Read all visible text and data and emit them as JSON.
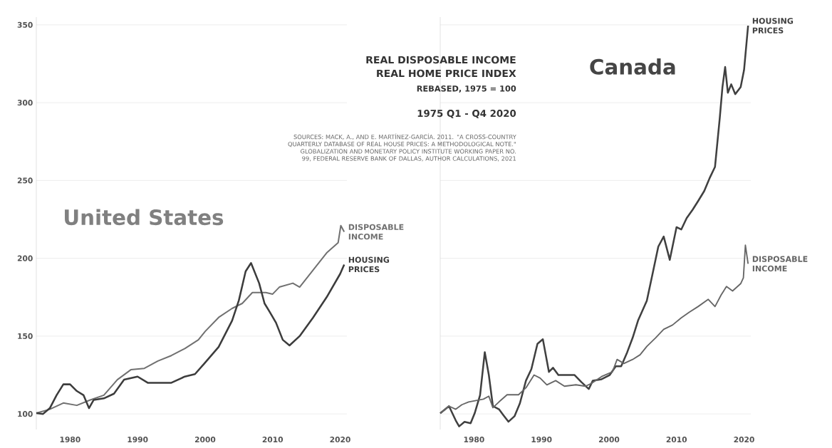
{
  "chart_data": [
    {
      "type": "line",
      "title": "United States",
      "xlim": [
        1975,
        2021
      ],
      "ylim": [
        90,
        355
      ],
      "xticks": [
        1980,
        1990,
        2000,
        2010,
        2020
      ],
      "yticks": [
        100,
        150,
        200,
        250,
        300,
        350
      ],
      "grid": "y",
      "annotations": [
        "REAL DISPOSABLE INCOME",
        "REAL HOME PRICE INDEX",
        "REBASED, 1975 = 100",
        "1975 Q1 - Q4 2020",
        "SOURCES: MACK, A., AND E. MARTÍNEZ-GARCÍA. 2011. \"A CROSS-COUNTRY QUARTERLY DATABASE OF REAL HOUSE PRICES: A METHODOLOGICAL NOTE.\" GLOBALIZATION AND MONETARY POLICY INSTITUTE WORKING PAPER NO. 99, FEDERAL RESERVE BANK OF DALLAS, AUTHOR CALCULATIONS, 2021"
      ],
      "series": [
        {
          "name": "DISPOSABLE INCOME",
          "color": "#707070",
          "x": [
            1975,
            1977,
            1979,
            1981,
            1983,
            1985,
            1987,
            1989,
            1991,
            1993,
            1995,
            1997,
            1999,
            2000,
            2002,
            2004,
            2005.5,
            2007,
            2009,
            2010,
            2011,
            2013,
            2014,
            2016,
            2018,
            2019.7,
            2020.1,
            2020.6
          ],
          "values": [
            100.5,
            103,
            107,
            105.5,
            109,
            112,
            122,
            128.4,
            129.3,
            134,
            137.5,
            142,
            147.6,
            153,
            162,
            167.8,
            171,
            178,
            178,
            177,
            181.5,
            184,
            181.5,
            192.5,
            203.5,
            210,
            221,
            217
          ]
        },
        {
          "name": "HOUSING PRICES",
          "color": "#3c3c3c",
          "x": [
            1975,
            1976,
            1977,
            1978,
            1979,
            1980,
            1981,
            1982,
            1982.8,
            1983.5,
            1985,
            1986.5,
            1988,
            1990,
            1991.5,
            1995,
            1997,
            1998.5,
            2000,
            2002,
            2004,
            2005,
            2006,
            2006.8,
            2008,
            2008.8,
            2009.5,
            2010.5,
            2011.5,
            2012.5,
            2014,
            2016,
            2018,
            2020,
            2020.6
          ],
          "values": [
            100.5,
            100,
            103.7,
            112,
            119,
            119,
            114.7,
            112,
            103.7,
            109,
            110,
            113,
            122,
            124,
            120,
            120,
            124,
            125.6,
            133,
            143,
            160,
            173,
            191.6,
            197,
            184,
            171,
            166,
            158.6,
            147.6,
            144,
            150,
            162,
            175,
            190,
            196
          ]
        }
      ]
    },
    {
      "type": "line",
      "title": "Canada",
      "xlim": [
        1975,
        2021
      ],
      "ylim": [
        90,
        355
      ],
      "xticks": [
        1980,
        1990,
        2000,
        2010,
        2020
      ],
      "yticks": [
        100,
        150,
        200,
        250,
        300,
        350
      ],
      "grid": "y",
      "tick_labels": "x",
      "series": [
        {
          "name": "HOUSING PRICES",
          "color": "#404040",
          "x": [
            1975,
            1976.3,
            1977.3,
            1977.8,
            1978.6,
            1979.5,
            1980.1,
            1980.9,
            1981.6,
            1982.2,
            1982.8,
            1983.7,
            1984.3,
            1985.1,
            1986,
            1986.8,
            1987.7,
            1988.5,
            1989.4,
            1990.2,
            1991.1,
            1991.7,
            1992.5,
            1993.8,
            1994.9,
            1995.9,
            1997,
            1997.6,
            1998.9,
            2000.1,
            2001,
            2001.8,
            2002.7,
            2003.5,
            2004.3,
            2005.6,
            2006.5,
            2007.3,
            2008.1,
            2009,
            2010,
            2010.7,
            2011.5,
            2012.4,
            2013.2,
            2014.1,
            2014.9,
            2015.7,
            2016.4,
            2016.8,
            2017.2,
            2017.6,
            2018.1,
            2018.7,
            2019.5,
            2020,
            2020.6
          ],
          "values": [
            100.4,
            105,
            95.8,
            92,
            94.9,
            94,
            100.4,
            112,
            139.7,
            125,
            105,
            103,
            99.5,
            95,
            98.5,
            106.8,
            121.4,
            128.8,
            145,
            148,
            127,
            129.7,
            125,
            125,
            125,
            120.5,
            116,
            121.4,
            122.3,
            125,
            130.6,
            130.6,
            139.7,
            148.9,
            160,
            172.7,
            191,
            207.5,
            214,
            199,
            220,
            218.5,
            225.8,
            231.3,
            236.8,
            243.2,
            251.5,
            258.8,
            290,
            310,
            322.9,
            306.4,
            311.8,
            305.5,
            310,
            321,
            349.5
          ]
        },
        {
          "name": "DISPOSABLE INCOME",
          "color": "#666666",
          "x": [
            1975,
            1976.3,
            1977.3,
            1978.2,
            1979.2,
            1980.3,
            1981.4,
            1982.2,
            1982.8,
            1983.7,
            1984.9,
            1986.6,
            1987.7,
            1988.9,
            1989.8,
            1990.8,
            1992.1,
            1993.4,
            1995.1,
            1996.5,
            1997.4,
            1998.9,
            2000.5,
            2001.2,
            2002.2,
            2003.5,
            2004.6,
            2005.6,
            2006.9,
            2008.1,
            2009.4,
            2010.7,
            2011.9,
            2013.2,
            2014.7,
            2015.7,
            2016.6,
            2017.4,
            2018.3,
            2019.5,
            2019.9,
            2020.2,
            2020.6
          ],
          "values": [
            100.4,
            105,
            103,
            105.9,
            107.7,
            108.6,
            109.5,
            111.4,
            104,
            107.7,
            112.3,
            112.3,
            116.8,
            125,
            123,
            118.7,
            121.4,
            117.8,
            118.7,
            117.8,
            119.6,
            124,
            127,
            135,
            132.4,
            135,
            138,
            143.4,
            148.9,
            154.4,
            157.1,
            161.7,
            165.4,
            169,
            173.6,
            169,
            176.4,
            181.9,
            179,
            183.7,
            187.4,
            208.4,
            196.5
          ]
        }
      ]
    }
  ]
}
